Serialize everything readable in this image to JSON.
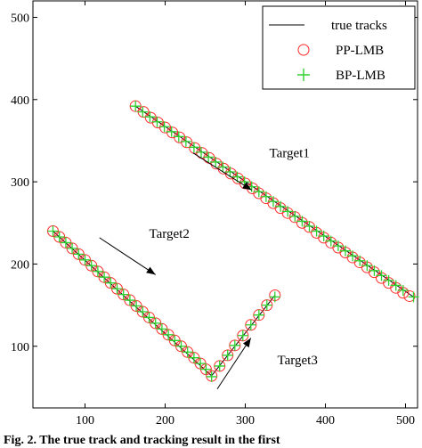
{
  "chart_data": {
    "type": "scatter",
    "xlim": [
      35,
      515
    ],
    "ylim": [
      25,
      520
    ],
    "grid": false,
    "legend_position": "top-right",
    "x_ticks": [
      100,
      200,
      300,
      400,
      500
    ],
    "y_ticks": [
      100,
      200,
      300,
      400,
      500
    ],
    "legend": [
      "true tracks",
      "PP-LMB",
      "BP-LMB"
    ],
    "colors": {
      "true_tracks": "#000000",
      "pp_lmb": "#ff2a2a",
      "bp_lmb": "#2fd12f"
    },
    "tracks": [
      {
        "label": "Target1",
        "start": [
          163,
          392
        ],
        "end": [
          510,
          160
        ],
        "points": 40
      },
      {
        "label": "Target2",
        "start": [
          60,
          240
        ],
        "end": [
          258,
          64
        ],
        "points": 26
      },
      {
        "label": "Target3",
        "start": [
          258,
          64
        ],
        "end": [
          337,
          162
        ],
        "points": 9
      }
    ],
    "pp_lmb": [
      [
        163,
        392
      ],
      [
        173,
        385
      ],
      [
        182,
        378
      ],
      [
        191,
        372
      ],
      [
        200,
        366
      ],
      [
        209,
        360
      ],
      [
        218,
        354
      ],
      [
        227,
        348
      ],
      [
        237,
        341
      ],
      [
        246,
        335
      ],
      [
        255,
        329
      ],
      [
        264,
        322
      ],
      [
        273,
        316
      ],
      [
        282,
        310
      ],
      [
        291,
        304
      ],
      [
        300,
        298
      ],
      [
        309,
        292
      ],
      [
        317,
        286
      ],
      [
        326,
        280
      ],
      [
        335,
        274
      ],
      [
        344,
        268
      ],
      [
        353,
        262
      ],
      [
        362,
        257
      ],
      [
        371,
        250
      ],
      [
        380,
        245
      ],
      [
        389,
        238
      ],
      [
        398,
        232
      ],
      [
        407,
        226
      ],
      [
        416,
        220
      ],
      [
        425,
        214
      ],
      [
        434,
        208
      ],
      [
        443,
        202
      ],
      [
        452,
        196
      ],
      [
        461,
        190
      ],
      [
        470,
        183
      ],
      [
        479,
        177
      ],
      [
        488,
        171
      ],
      [
        497,
        165
      ],
      [
        505,
        161
      ],
      [
        60,
        240
      ],
      [
        68,
        233
      ],
      [
        76,
        226
      ],
      [
        84,
        219
      ],
      [
        92,
        212
      ],
      [
        100,
        205
      ],
      [
        108,
        198
      ],
      [
        116,
        191
      ],
      [
        124,
        184
      ],
      [
        132,
        177
      ],
      [
        140,
        170
      ],
      [
        148,
        163
      ],
      [
        156,
        156
      ],
      [
        164,
        149
      ],
      [
        172,
        142
      ],
      [
        180,
        135
      ],
      [
        188,
        128
      ],
      [
        196,
        121
      ],
      [
        204,
        114
      ],
      [
        212,
        107
      ],
      [
        220,
        100
      ],
      [
        228,
        93
      ],
      [
        236,
        86
      ],
      [
        244,
        79
      ],
      [
        251,
        72
      ],
      [
        258,
        64
      ],
      [
        268,
        76
      ],
      [
        278,
        89
      ],
      [
        287,
        101
      ],
      [
        297,
        113
      ],
      [
        307,
        126
      ],
      [
        317,
        138
      ],
      [
        327,
        150
      ],
      [
        337,
        162
      ]
    ],
    "bp_lmb": [
      [
        163,
        392
      ],
      [
        172,
        385
      ],
      [
        181,
        379
      ],
      [
        190,
        373
      ],
      [
        199,
        367
      ],
      [
        208,
        361
      ],
      [
        217,
        355
      ],
      [
        226,
        349
      ],
      [
        236,
        342
      ],
      [
        245,
        336
      ],
      [
        254,
        330
      ],
      [
        263,
        324
      ],
      [
        272,
        318
      ],
      [
        281,
        312
      ],
      [
        290,
        306
      ],
      [
        299,
        300
      ],
      [
        308,
        294
      ],
      [
        317,
        288
      ],
      [
        326,
        282
      ],
      [
        335,
        276
      ],
      [
        344,
        270
      ],
      [
        353,
        264
      ],
      [
        362,
        258
      ],
      [
        371,
        252
      ],
      [
        380,
        246
      ],
      [
        389,
        240
      ],
      [
        398,
        234
      ],
      [
        407,
        228
      ],
      [
        416,
        222
      ],
      [
        425,
        216
      ],
      [
        434,
        210
      ],
      [
        443,
        204
      ],
      [
        452,
        198
      ],
      [
        461,
        192
      ],
      [
        470,
        186
      ],
      [
        479,
        180
      ],
      [
        488,
        174
      ],
      [
        497,
        168
      ],
      [
        510,
        160
      ],
      [
        60,
        240
      ],
      [
        68,
        233
      ],
      [
        76,
        226
      ],
      [
        84,
        219
      ],
      [
        92,
        212
      ],
      [
        100,
        205
      ],
      [
        108,
        198
      ],
      [
        116,
        191
      ],
      [
        124,
        184
      ],
      [
        132,
        177
      ],
      [
        140,
        170
      ],
      [
        148,
        163
      ],
      [
        156,
        156
      ],
      [
        164,
        149
      ],
      [
        172,
        142
      ],
      [
        180,
        135
      ],
      [
        188,
        128
      ],
      [
        196,
        121
      ],
      [
        204,
        114
      ],
      [
        212,
        107
      ],
      [
        220,
        100
      ],
      [
        228,
        93
      ],
      [
        236,
        86
      ],
      [
        244,
        79
      ],
      [
        251,
        72
      ],
      [
        258,
        63
      ],
      [
        268,
        76
      ],
      [
        278,
        89
      ],
      [
        287,
        101
      ],
      [
        297,
        113
      ],
      [
        307,
        126
      ],
      [
        317,
        138
      ],
      [
        327,
        150
      ],
      [
        337,
        160
      ]
    ],
    "annotations": [
      {
        "text": "Target1",
        "at": [
          330,
          330
        ],
        "arrow_from": [
          235,
          335
        ],
        "arrow_to": [
          308,
          290
        ]
      },
      {
        "text": "Target2",
        "at": [
          180,
          232
        ],
        "arrow_from": [
          118,
          232
        ],
        "arrow_to": [
          188,
          187
        ]
      },
      {
        "text": "Target3",
        "at": [
          340,
          78
        ],
        "arrow_from": [
          265,
          48
        ],
        "arrow_to": [
          307,
          110
        ]
      }
    ]
  },
  "caption": "Fig. 2.   The true track  and tracking result  in the first"
}
